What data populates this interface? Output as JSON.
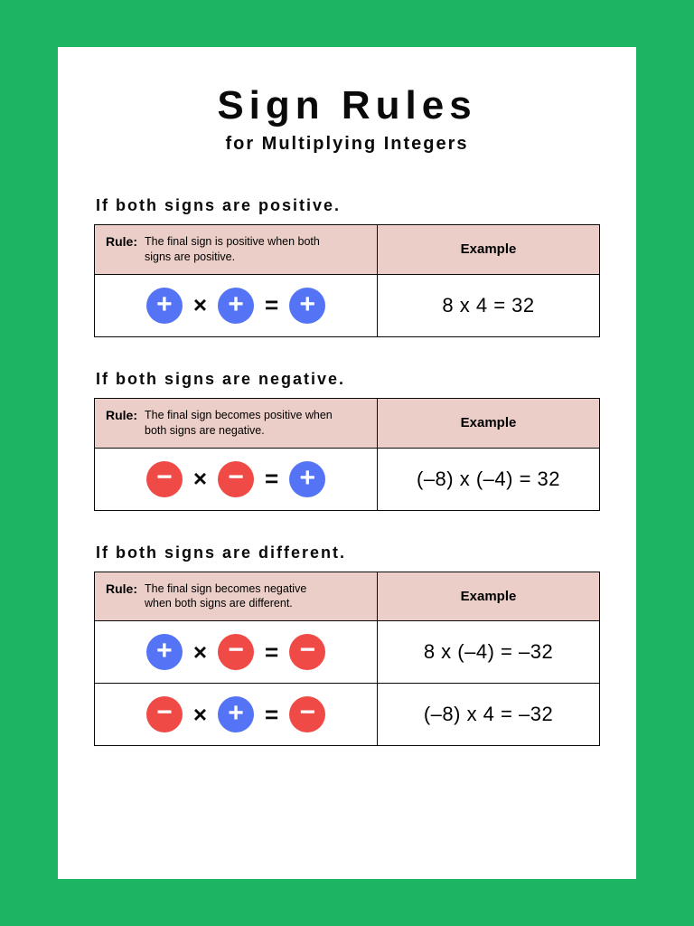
{
  "colors": {
    "page_bg": "#1db463",
    "card_bg": "#ffffff",
    "header_row_bg": "#ebcec8",
    "border": "#0a0a0a",
    "text": "#0a0a0a",
    "plus_circle": "#5574f5",
    "minus_circle": "#f04a46",
    "circle_glyph": "#ffffff"
  },
  "typography": {
    "title_fontsize": 44,
    "title_letter_spacing": 6,
    "subtitle_fontsize": 20,
    "heading_fontsize": 18,
    "rule_label_fontsize": 14,
    "rule_text_fontsize": 12.5,
    "example_header_fontsize": 15,
    "example_value_fontsize": 22,
    "circle_diameter": 40,
    "operator_fontsize": 26
  },
  "title": "Sign Rules",
  "subtitle": "for Multiplying Integers",
  "rule_label": "Rule:",
  "example_header": "Example",
  "sections": [
    {
      "heading": "If both signs are positive.",
      "rule_text": "The final sign is positive when both signs are positive.",
      "rows": [
        {
          "equation": [
            "plus",
            "×",
            "plus",
            "=",
            "plus"
          ],
          "example": "8 x 4 = 32"
        }
      ]
    },
    {
      "heading": "If both signs are negative.",
      "rule_text": "The final sign  becomes positive when both signs are negative.",
      "rows": [
        {
          "equation": [
            "minus",
            "×",
            "minus",
            "=",
            "plus"
          ],
          "example": "(–8) x (–4) = 32"
        }
      ]
    },
    {
      "heading": "If both signs are different.",
      "rule_text": "The final sign becomes negative when both signs are different.",
      "rows": [
        {
          "equation": [
            "plus",
            "×",
            "minus",
            "=",
            "minus"
          ],
          "example": "8 x (–4) = –32"
        },
        {
          "equation": [
            "minus",
            "×",
            "plus",
            "=",
            "minus"
          ],
          "example": "(–8) x 4 = –32"
        }
      ]
    }
  ]
}
